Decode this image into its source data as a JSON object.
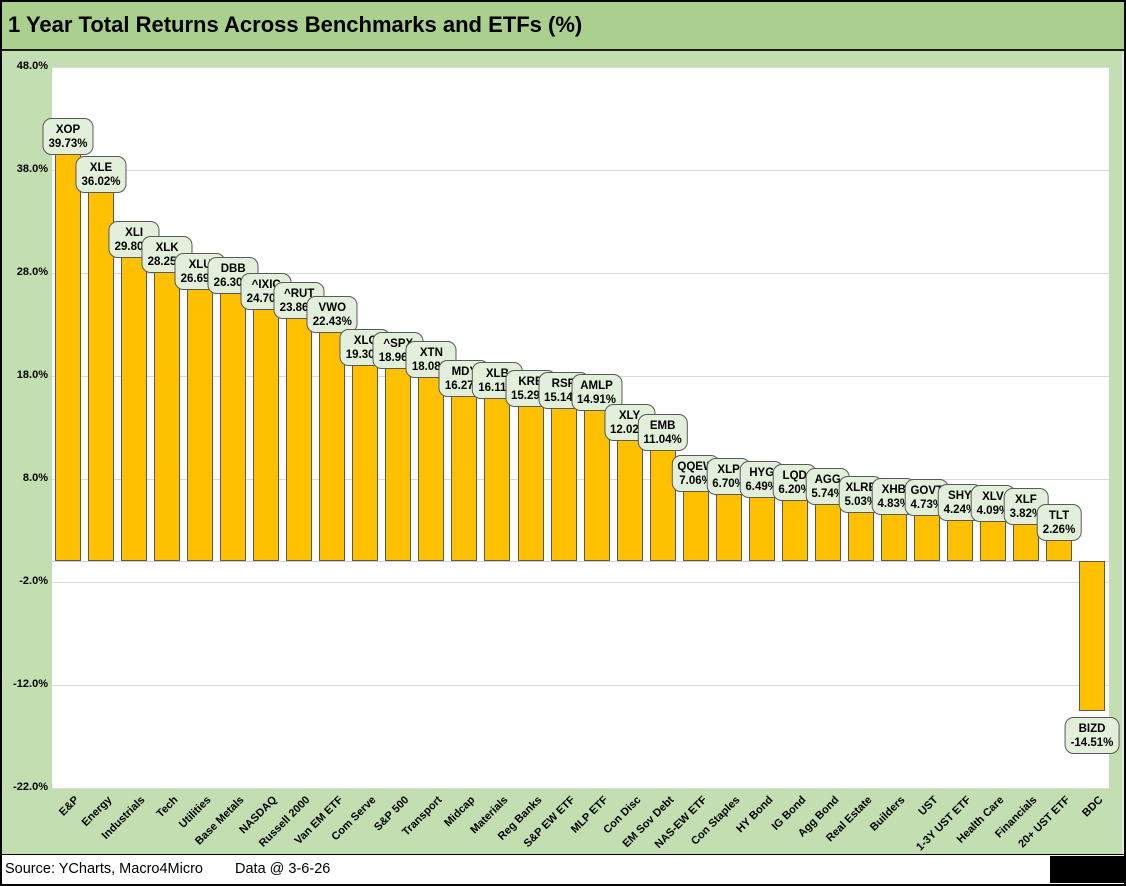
{
  "title": "1 Year Total Returns Across Benchmarks and ETFs (%)",
  "footer": {
    "source": "Source: YCharts, Macro4Micro",
    "data_date": "Data @ 3-6-26"
  },
  "chart_data": {
    "type": "bar",
    "title": "1 Year Total Returns Across Benchmarks and ETFs (%)",
    "xlabel": "",
    "ylabel": "",
    "ylim": [
      -22,
      48
    ],
    "ytick_step": 10,
    "ytick_labels": [
      "48.0%",
      "38.0%",
      "28.0%",
      "18.0%",
      "8.0%",
      "-2.0%",
      "-12.0%",
      "-22.0%"
    ],
    "grid": true,
    "legend": false,
    "categories": [
      "E&P",
      "Energy",
      "Industrials",
      "Tech",
      "Utilities",
      "Base Metals",
      "NASDAQ",
      "Russell 2000",
      "Van EM ETF",
      "Com Serve",
      "S&P 500",
      "Transport",
      "Midcap",
      "Materials",
      "Reg Banks",
      "S&P EW ETF",
      "MLP ETF",
      "Con Disc",
      "EM Sov Debt",
      "NAS-EW ETF",
      "Con Staples",
      "HY Bond",
      "IG Bond",
      "Agg Bond",
      "Real Estate",
      "Builders",
      "UST",
      "1-3Y UST ETF",
      "Health Care",
      "Financials",
      "20+ UST ETF",
      "BDC"
    ],
    "series": [
      {
        "name": "1 Year Total Return (%)",
        "tickers": [
          "XOP",
          "XLE",
          "XLI",
          "XLK",
          "XLU",
          "DBB",
          "^IXIC",
          "^RUT",
          "VWO",
          "XLC",
          "^SPX",
          "XTN",
          "MDY",
          "XLB",
          "KRE",
          "RSP",
          "AMLP",
          "XLY",
          "EMB",
          "QQEW",
          "XLP",
          "HYG",
          "LQD",
          "AGG",
          "XLRE",
          "XHB",
          "GOVT",
          "SHY",
          "XLV",
          "XLF",
          "TLT",
          "BIZD"
        ],
        "values": [
          39.73,
          36.02,
          29.8,
          28.25,
          26.69,
          26.3,
          24.7,
          23.86,
          22.43,
          19.3,
          18.96,
          18.08,
          16.27,
          16.11,
          15.29,
          15.14,
          14.91,
          12.02,
          11.04,
          7.06,
          6.7,
          6.49,
          6.2,
          5.74,
          5.03,
          4.83,
          4.73,
          4.24,
          4.09,
          3.82,
          2.26,
          -14.51
        ]
      }
    ],
    "colors": {
      "bar_fill": "#FFC000",
      "bar_border": "#595959",
      "callout_fill": "#E2EFDA",
      "callout_border": "#595959",
      "title_band_bg": "#A9D08E",
      "chart_bg": "#C3DEB0",
      "plot_bg": "#FFFFFF",
      "gridline": "#D9D9D9"
    }
  }
}
